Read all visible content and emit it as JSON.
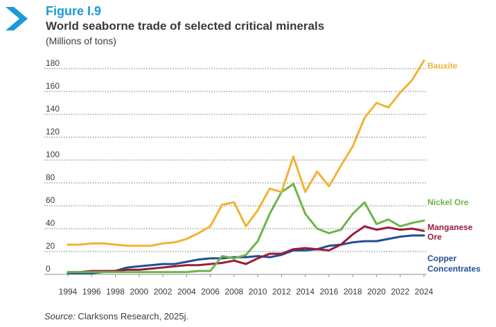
{
  "figure_label": "Figure I.9",
  "title": "World seaborne trade of selected critical minerals",
  "subtitle": "(Millions of tons)",
  "source": {
    "prefix": "Source:",
    "text": " Clarksons Research, 2025j."
  },
  "colors": {
    "accent": "#1a9ad6",
    "grid": "#8c8c8c",
    "text": "#3a3a3a"
  },
  "icon": "chevron-right-icon",
  "chart_data": {
    "type": "line",
    "x": [
      1994,
      1995,
      1996,
      1997,
      1998,
      1999,
      2000,
      2001,
      2002,
      2003,
      2004,
      2005,
      2006,
      2007,
      2008,
      2009,
      2010,
      2011,
      2012,
      2013,
      2014,
      2015,
      2016,
      2017,
      2018,
      2019,
      2020,
      2021,
      2022,
      2023,
      2024
    ],
    "x_ticks": [
      "1994",
      "1996",
      "1998",
      "2000",
      "2002",
      "2004",
      "2006",
      "2008",
      "2010",
      "2012",
      "2014",
      "2016",
      "2018",
      "2020",
      "2022",
      "2024"
    ],
    "y_ticks": [
      "0",
      "20",
      "40",
      "60",
      "80",
      "100",
      "120",
      "140",
      "160",
      "180"
    ],
    "ylim": [
      0,
      190
    ],
    "grid": true,
    "series": [
      {
        "name": "Bauxite",
        "color": "#f2b234",
        "values": [
          26,
          26,
          27,
          27,
          26,
          25,
          25,
          25,
          27,
          28,
          31,
          36,
          42,
          61,
          63,
          42,
          56,
          75,
          72,
          103,
          72,
          90,
          77,
          95,
          112,
          137,
          150,
          146,
          159,
          170,
          187
        ]
      },
      {
        "name": "Nickel Ore",
        "color": "#6ab547",
        "values": [
          2,
          2,
          2,
          2,
          2,
          2,
          2,
          2,
          2,
          2,
          2,
          3,
          3,
          16,
          14,
          17,
          29,
          53,
          72,
          79,
          53,
          40,
          36,
          39,
          53,
          63,
          44,
          48,
          42,
          45,
          47
        ]
      },
      {
        "name": "Manganese Ore",
        "color": "#9b1b3a",
        "values": [
          2,
          2,
          3,
          3,
          3,
          4,
          4,
          5,
          6,
          7,
          8,
          8,
          9,
          10,
          12,
          9,
          14,
          18,
          18,
          22,
          23,
          22,
          21,
          26,
          35,
          42,
          39,
          41,
          39,
          40,
          38
        ]
      },
      {
        "name": "Copper Concentrates",
        "color": "#1e4f96",
        "values": [
          1,
          1,
          1,
          2,
          3,
          6,
          7,
          8,
          9,
          9,
          11,
          13,
          14,
          14,
          15,
          15,
          16,
          15,
          17,
          21,
          21,
          22,
          25,
          26,
          28,
          29,
          29,
          31,
          33,
          34,
          34
        ]
      }
    ]
  }
}
